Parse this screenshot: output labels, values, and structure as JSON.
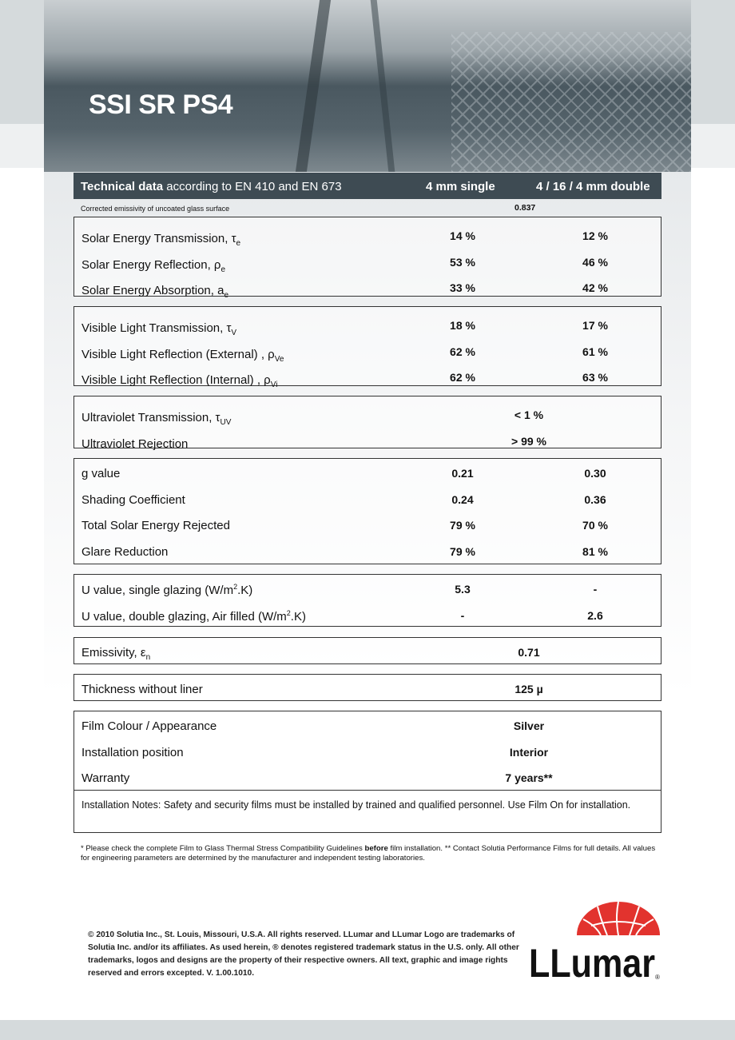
{
  "title": "SSI SR PS4",
  "table_header": {
    "label_bold": "Technical data",
    "label_rest": " according to EN 410 and EN 673",
    "col1": "4 mm single",
    "col2": "4 / 16 / 4 mm double"
  },
  "emissivity_note": {
    "label": "Corrected emissivity of uncoated glass surface",
    "value": "0.837"
  },
  "groups": [
    {
      "rows": [
        {
          "label": "Solar Energy Transmission, τ",
          "sub": "e",
          "col1": "14 %",
          "col2": "12 %"
        },
        {
          "label": "Solar Energy Reflection, ρ",
          "sub": "e",
          "col1": "53 %",
          "col2": "46 %"
        },
        {
          "label": "Solar Energy Absorption, a",
          "sub": "e",
          "col1": "33 %",
          "col2": "42 %"
        }
      ]
    },
    {
      "rows": [
        {
          "label": "Visible Light Transmission, τ",
          "sub": "V",
          "col1": "18 %",
          "col2": "17 %"
        },
        {
          "label": "Visible Light Reflection (External) , ρ",
          "sub": "Ve",
          "col1": "62 %",
          "col2": "61 %"
        },
        {
          "label": "Visible Light Reflection (Internal) , ρ",
          "sub": "Vi",
          "col1": "62 %",
          "col2": "63 %"
        }
      ]
    },
    {
      "rows": [
        {
          "label": "Ultraviolet Transmission, τ",
          "sub": "UV",
          "merged": "< 1 %"
        },
        {
          "label": "Ultraviolet Rejection",
          "merged": "> 99 %"
        }
      ]
    },
    {
      "rows": [
        {
          "label": "g value",
          "col1": "0.21",
          "col2": "0.30"
        },
        {
          "label": "Shading Coefficient",
          "col1": "0.24",
          "col2": "0.36"
        },
        {
          "label": "Total Solar Energy Rejected",
          "col1": "79 %",
          "col2": "70 %"
        },
        {
          "label": "Glare Reduction",
          "col1": "79 %",
          "col2": "81 %"
        }
      ]
    },
    {
      "rows": [
        {
          "label": "U value, single glazing (W/m",
          "sup": "2",
          "label_end": ".K)",
          "col1": "5.3",
          "col2": "-"
        },
        {
          "label": "U value, double glazing, Air filled (W/m",
          "sup": "2",
          "label_end": ".K)",
          "col1": "-",
          "col2": "2.6"
        }
      ]
    },
    {
      "rows": [
        {
          "label": "Emissivity, ε",
          "sub": "n",
          "merged": "0.71"
        }
      ]
    },
    {
      "rows": [
        {
          "label": "Thickness without liner",
          "merged": "125 µ"
        }
      ]
    },
    {
      "rows": [
        {
          "label": "Film Colour / Appearance",
          "merged": "Silver"
        },
        {
          "label": "Installation position",
          "merged": "Interior"
        },
        {
          "label": "Warranty",
          "merged": "7 years**"
        }
      ],
      "installation_notes": "Installation Notes: Safety and security films must be installed by trained and qualified personnel.  Use Film On for installation."
    }
  ],
  "footnote": {
    "part1": "* Please check the complete Film to Glass Thermal Stress Compatibility Guidelines ",
    "bold": "before",
    "part2": " film installation.  ** Contact Solutia Performance Films for full details. All values for engineering parameters are determined by the manufacturer and independent testing laboratories."
  },
  "copyright": "© 2010 Solutia Inc., St. Louis, Missouri, U.S.A. All rights reserved. LLumar and LLumar Logo are trademarks of Solutia Inc. and/or its affiliates. As used herein, ® denotes registered trademark status in the U.S. only. All other trademarks, logos and designs are the property of their respective owners. All text, graphic and image rights reserved and errors excepted. V. 1.00.1010.",
  "logo": {
    "text": "LLumar",
    "mark": "®",
    "color": "#e2332e"
  }
}
